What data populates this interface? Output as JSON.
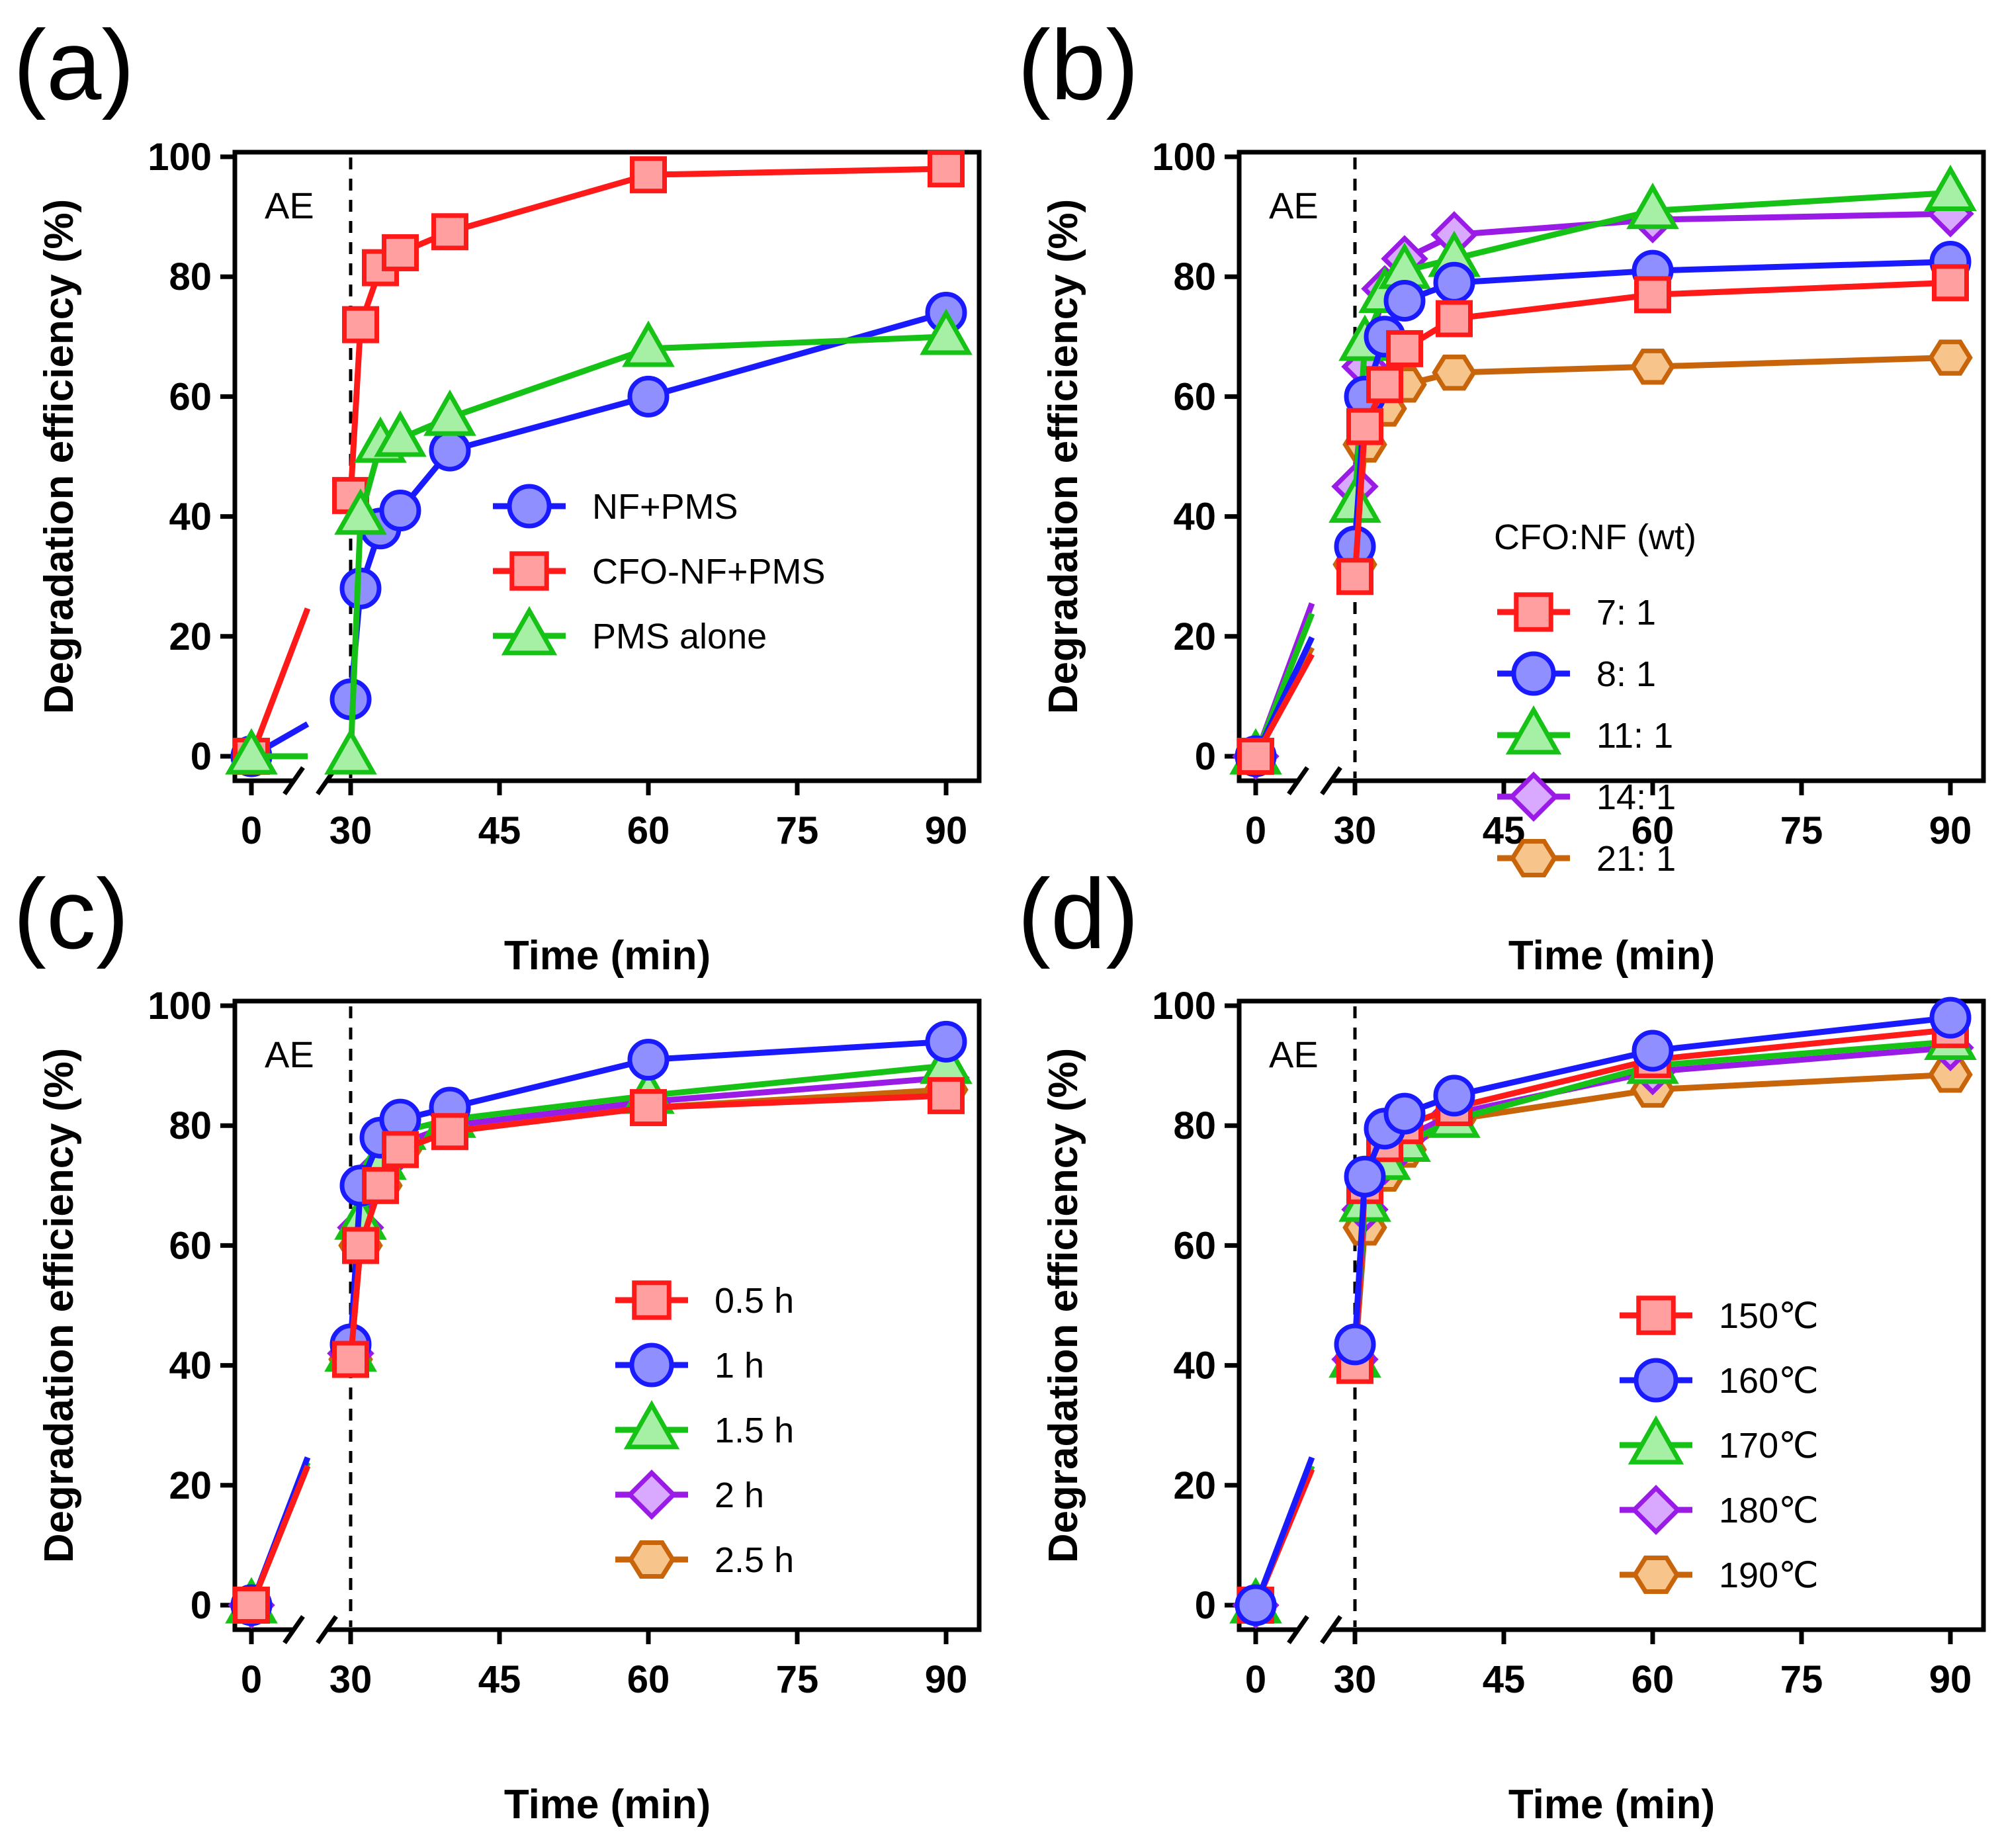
{
  "chart_data": [
    {
      "panel": "(a)",
      "type": "line",
      "xlabel": "Time (min)",
      "ylabel": "Degradation efficiency (%)",
      "annotation": "AE",
      "xticks": [
        0,
        30,
        45,
        60,
        75,
        90
      ],
      "yticks": [
        0,
        20,
        40,
        60,
        80,
        100
      ],
      "ylim": [
        0,
        100
      ],
      "legend_title": "",
      "legend_position": "center-right",
      "series": [
        {
          "name": "NF+PMS",
          "marker": "circle",
          "color": "#1a1aff",
          "fill": "#8f8fff",
          "x": [
            0,
            30,
            31,
            33,
            35,
            40,
            60,
            90
          ],
          "y": [
            0,
            9.5,
            28,
            38,
            41,
            51,
            60,
            74
          ]
        },
        {
          "name": "CFO-NF+PMS",
          "marker": "square",
          "color": "#ff1a1a",
          "fill": "#ff9f9f",
          "x": [
            0,
            30,
            31,
            33,
            35,
            40,
            60,
            90
          ],
          "y": [
            0,
            43.5,
            72,
            81.5,
            84,
            87.5,
            97,
            98
          ]
        },
        {
          "name": "PMS alone",
          "marker": "triangle",
          "color": "#17c217",
          "fill": "#a6f0a6",
          "x": [
            0,
            30,
            31,
            33,
            35,
            40,
            60,
            90
          ],
          "y": [
            0,
            0,
            40,
            52,
            53,
            56.5,
            68,
            70
          ]
        }
      ]
    },
    {
      "panel": "(b)",
      "type": "line",
      "xlabel": "Time (min)",
      "ylabel": "Degradation efficiency (%)",
      "annotation": "AE",
      "xticks": [
        0,
        30,
        45,
        60,
        75,
        90
      ],
      "yticks": [
        0,
        20,
        40,
        60,
        80,
        100
      ],
      "ylim": [
        0,
        100
      ],
      "legend_title": "CFO:NF (wt)",
      "legend_position": "lower-right",
      "series": [
        {
          "name": "21: 1",
          "marker": "hexagon",
          "color": "#c8640a",
          "fill": "#f7c48c",
          "x": [
            0,
            30,
            31,
            33,
            35,
            40,
            60,
            90
          ],
          "y": [
            0,
            32,
            52,
            58,
            62,
            64,
            65,
            66.5
          ]
        },
        {
          "name": "14: 1",
          "marker": "diamond",
          "color": "#9a1ae6",
          "fill": "#d9a8ff",
          "x": [
            0,
            30,
            31,
            33,
            35,
            40,
            60,
            90
          ],
          "y": [
            0,
            45,
            65,
            78,
            83,
            87,
            89.5,
            90.5
          ]
        },
        {
          "name": "11: 1",
          "marker": "triangle",
          "color": "#17c217",
          "fill": "#a6f0a6",
          "x": [
            0,
            30,
            31,
            33,
            35,
            40,
            60,
            90
          ],
          "y": [
            0,
            42,
            69,
            77,
            81,
            83,
            91,
            94
          ]
        },
        {
          "name": "8: 1",
          "marker": "circle",
          "color": "#1a1aff",
          "fill": "#8f8fff",
          "x": [
            0,
            30,
            31,
            33,
            35,
            40,
            60,
            90
          ],
          "y": [
            0,
            35,
            60,
            70,
            76,
            79,
            81,
            82.5
          ]
        },
        {
          "name": "7: 1",
          "marker": "square",
          "color": "#ff1a1a",
          "fill": "#ff9f9f",
          "x": [
            0,
            30,
            31,
            33,
            35,
            40,
            60,
            90
          ],
          "y": [
            0,
            30,
            55,
            62,
            68,
            73,
            77,
            79
          ]
        }
      ]
    },
    {
      "panel": "(c)",
      "type": "line",
      "xlabel": "Time (min)",
      "ylabel": "Degradation efficiency (%)",
      "annotation": "AE",
      "xticks": [
        0,
        30,
        45,
        60,
        75,
        90
      ],
      "yticks": [
        0,
        20,
        40,
        60,
        80,
        100
      ],
      "ylim": [
        0,
        100
      ],
      "legend_title": "",
      "legend_position": "lower-right",
      "series": [
        {
          "name": "2.5 h",
          "marker": "hexagon",
          "color": "#c8640a",
          "fill": "#f7c48c",
          "x": [
            0,
            30,
            31,
            33,
            35,
            40,
            60,
            90
          ],
          "y": [
            0,
            41,
            60,
            70,
            76,
            79,
            83,
            86
          ]
        },
        {
          "name": "2 h",
          "marker": "diamond",
          "color": "#9a1ae6",
          "fill": "#d9a8ff",
          "x": [
            0,
            30,
            31,
            33,
            35,
            40,
            60,
            90
          ],
          "y": [
            0,
            42,
            63,
            73,
            77,
            80,
            84,
            88
          ]
        },
        {
          "name": "1.5 h",
          "marker": "triangle",
          "color": "#17c217",
          "fill": "#a6f0a6",
          "x": [
            0,
            30,
            31,
            33,
            35,
            40,
            60,
            90
          ],
          "y": [
            0,
            42,
            64,
            74,
            79,
            81,
            85,
            90
          ]
        },
        {
          "name": "1 h",
          "marker": "circle",
          "color": "#1a1aff",
          "fill": "#8f8fff",
          "x": [
            0,
            30,
            31,
            33,
            35,
            40,
            60,
            90
          ],
          "y": [
            0,
            43.5,
            70,
            78,
            81,
            83,
            91,
            94
          ]
        },
        {
          "name": "0.5 h",
          "marker": "square",
          "color": "#ff1a1a",
          "fill": "#ff9f9f",
          "x": [
            0,
            30,
            31,
            33,
            35,
            40,
            60,
            90
          ],
          "y": [
            0,
            41,
            60,
            70,
            76,
            79,
            83,
            85
          ]
        }
      ]
    },
    {
      "panel": "(d)",
      "type": "line",
      "xlabel": "Time (min)",
      "ylabel": "Degradation efficiency (%)",
      "annotation": "AE",
      "xticks": [
        0,
        30,
        45,
        60,
        75,
        90
      ],
      "yticks": [
        0,
        20,
        40,
        60,
        80,
        100
      ],
      "ylim": [
        0,
        100
      ],
      "legend_title": "",
      "legend_position": "lower-right",
      "series": [
        {
          "name": "190℃",
          "marker": "hexagon",
          "color": "#c8640a",
          "fill": "#f7c48c",
          "x": [
            0,
            30,
            31,
            33,
            35,
            40,
            60,
            90
          ],
          "y": [
            0,
            41,
            63,
            72,
            76,
            81,
            86,
            88.5
          ]
        },
        {
          "name": "180℃",
          "marker": "diamond",
          "color": "#9a1ae6",
          "fill": "#d9a8ff",
          "x": [
            0,
            30,
            31,
            33,
            35,
            40,
            60,
            90
          ],
          "y": [
            0,
            41,
            66,
            74,
            78,
            82,
            89,
            93
          ]
        },
        {
          "name": "170℃",
          "marker": "triangle",
          "color": "#17c217",
          "fill": "#a6f0a6",
          "x": [
            0,
            30,
            31,
            33,
            35,
            40,
            60,
            90
          ],
          "y": [
            0,
            41,
            67,
            74,
            77,
            81,
            90,
            94
          ]
        },
        {
          "name": "150℃",
          "marker": "square",
          "color": "#ff1a1a",
          "fill": "#ff9f9f",
          "x": [
            0,
            30,
            31,
            33,
            35,
            40,
            60,
            90
          ],
          "y": [
            0,
            40,
            70,
            77,
            80,
            83,
            91,
            96
          ]
        },
        {
          "name": "160℃",
          "marker": "circle",
          "color": "#1a1aff",
          "fill": "#8f8fff",
          "x": [
            0,
            30,
            31,
            33,
            35,
            40,
            60,
            90
          ],
          "y": [
            0,
            43.5,
            71.5,
            79.5,
            82,
            85,
            92.5,
            98
          ]
        }
      ]
    }
  ],
  "legend_order": [
    [
      "NF+PMS",
      "CFO-NF+PMS",
      "PMS alone"
    ],
    [
      "7: 1",
      "8: 1",
      "11: 1",
      "14: 1",
      "21: 1"
    ],
    [
      "0.5 h",
      "1 h",
      "1.5 h",
      "2 h",
      "2.5 h"
    ],
    [
      "150℃",
      "160℃",
      "170℃",
      "180℃",
      "190℃"
    ]
  ]
}
